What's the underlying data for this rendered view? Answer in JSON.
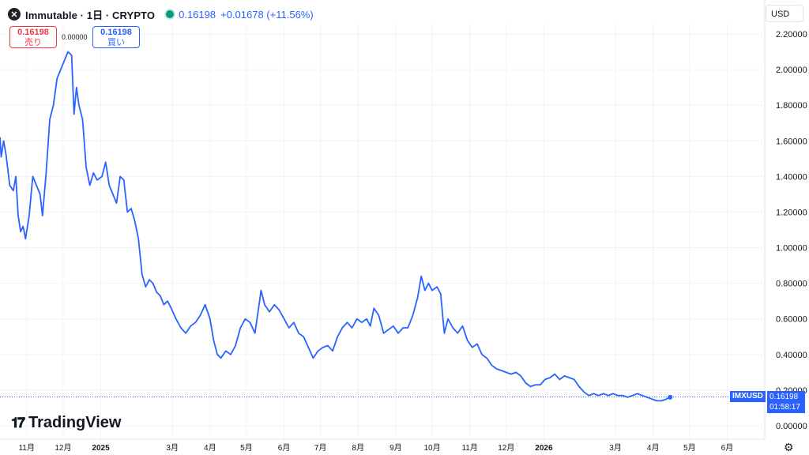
{
  "header": {
    "symbol_logo": "x-logo-icon",
    "title": "Immutable · 1日 · CRYPTO",
    "price": "0.16198",
    "change": "+0.01678 (+11.56%)"
  },
  "trade": {
    "sell_price": "0.16198",
    "sell_label": "売り",
    "spread": "0.00000",
    "buy_price": "0.16198",
    "buy_label": "買い"
  },
  "currency": "USD",
  "brand": "TradingView",
  "last": {
    "symbol": "IMXUSD",
    "price": "0.16198",
    "countdown": "01:58:17"
  },
  "colors": {
    "line": "#2962ff",
    "sell": "#f23645",
    "buy": "#2962ff"
  },
  "chart_data": {
    "type": "line",
    "title": "",
    "xlabel": "",
    "ylabel": "",
    "ylim": [
      0,
      2.25
    ],
    "xlim": [
      "2024-10-10",
      "2026-06-30"
    ],
    "grid": true,
    "y_ticks": [
      "2.20000",
      "2.00000",
      "1.80000",
      "1.60000",
      "1.40000",
      "1.20000",
      "1.00000",
      "0.80000",
      "0.60000",
      "0.40000",
      "0.20000",
      "0.00000"
    ],
    "x_ticks": [
      {
        "label": "11月",
        "date": "2024-11-01"
      },
      {
        "label": "12月",
        "date": "2024-12-01"
      },
      {
        "label": "2025",
        "date": "2025-01-01",
        "bold": true
      },
      {
        "label": "3月",
        "date": "2025-03-01"
      },
      {
        "label": "4月",
        "date": "2025-04-01"
      },
      {
        "label": "5月",
        "date": "2025-05-01"
      },
      {
        "label": "6月",
        "date": "2025-06-01"
      },
      {
        "label": "7月",
        "date": "2025-07-01"
      },
      {
        "label": "8月",
        "date": "2025-08-01"
      },
      {
        "label": "9月",
        "date": "2025-09-01"
      },
      {
        "label": "10月",
        "date": "2025-10-01"
      },
      {
        "label": "11月",
        "date": "2025-11-01"
      },
      {
        "label": "12月",
        "date": "2025-12-01"
      },
      {
        "label": "2026",
        "date": "2026-01-01",
        "bold": true
      },
      {
        "label": "3月",
        "date": "2026-03-01"
      },
      {
        "label": "4月",
        "date": "2026-04-01"
      },
      {
        "label": "5月",
        "date": "2026-05-01"
      },
      {
        "label": "6月",
        "date": "2026-06-01"
      }
    ],
    "series": [
      {
        "values": [
          [
            "2024-10-10",
            1.62
          ],
          [
            "2024-10-11",
            1.51
          ],
          [
            "2024-10-13",
            1.6
          ],
          [
            "2024-10-15",
            1.52
          ],
          [
            "2024-10-18",
            1.35
          ],
          [
            "2024-10-21",
            1.32
          ],
          [
            "2024-10-23",
            1.4
          ],
          [
            "2024-10-25",
            1.18
          ],
          [
            "2024-10-27",
            1.09
          ],
          [
            "2024-10-29",
            1.12
          ],
          [
            "2024-10-31",
            1.05
          ],
          [
            "2024-11-03",
            1.18
          ],
          [
            "2024-11-06",
            1.4
          ],
          [
            "2024-11-09",
            1.35
          ],
          [
            "2024-11-12",
            1.3
          ],
          [
            "2024-11-14",
            1.18
          ],
          [
            "2024-11-17",
            1.42
          ],
          [
            "2024-11-20",
            1.72
          ],
          [
            "2024-11-23",
            1.8
          ],
          [
            "2024-11-26",
            1.95
          ],
          [
            "2024-11-29",
            2.0
          ],
          [
            "2024-12-02",
            2.05
          ],
          [
            "2024-12-05",
            2.1
          ],
          [
            "2024-12-08",
            2.08
          ],
          [
            "2024-12-10",
            1.75
          ],
          [
            "2024-12-12",
            1.9
          ],
          [
            "2024-12-14",
            1.8
          ],
          [
            "2024-12-17",
            1.72
          ],
          [
            "2024-12-20",
            1.45
          ],
          [
            "2024-12-23",
            1.35
          ],
          [
            "2024-12-26",
            1.42
          ],
          [
            "2024-12-29",
            1.38
          ],
          [
            "2025-01-02",
            1.4
          ],
          [
            "2025-01-05",
            1.48
          ],
          [
            "2025-01-08",
            1.35
          ],
          [
            "2025-01-11",
            1.3
          ],
          [
            "2025-01-14",
            1.25
          ],
          [
            "2025-01-17",
            1.4
          ],
          [
            "2025-01-20",
            1.38
          ],
          [
            "2025-01-23",
            1.2
          ],
          [
            "2025-01-26",
            1.22
          ],
          [
            "2025-01-29",
            1.15
          ],
          [
            "2025-02-01",
            1.05
          ],
          [
            "2025-02-04",
            0.85
          ],
          [
            "2025-02-07",
            0.78
          ],
          [
            "2025-02-10",
            0.82
          ],
          [
            "2025-02-13",
            0.8
          ],
          [
            "2025-02-16",
            0.75
          ],
          [
            "2025-02-19",
            0.73
          ],
          [
            "2025-02-22",
            0.68
          ],
          [
            "2025-02-25",
            0.7
          ],
          [
            "2025-02-28",
            0.66
          ],
          [
            "2025-03-04",
            0.6
          ],
          [
            "2025-03-08",
            0.55
          ],
          [
            "2025-03-12",
            0.52
          ],
          [
            "2025-03-16",
            0.56
          ],
          [
            "2025-03-20",
            0.58
          ],
          [
            "2025-03-24",
            0.62
          ],
          [
            "2025-03-28",
            0.68
          ],
          [
            "2025-04-01",
            0.6
          ],
          [
            "2025-04-04",
            0.48
          ],
          [
            "2025-04-07",
            0.4
          ],
          [
            "2025-04-10",
            0.38
          ],
          [
            "2025-04-14",
            0.42
          ],
          [
            "2025-04-18",
            0.4
          ],
          [
            "2025-04-22",
            0.45
          ],
          [
            "2025-04-26",
            0.55
          ],
          [
            "2025-04-30",
            0.6
          ],
          [
            "2025-05-04",
            0.58
          ],
          [
            "2025-05-08",
            0.52
          ],
          [
            "2025-05-11",
            0.66
          ],
          [
            "2025-05-13",
            0.76
          ],
          [
            "2025-05-16",
            0.68
          ],
          [
            "2025-05-20",
            0.64
          ],
          [
            "2025-05-24",
            0.68
          ],
          [
            "2025-05-28",
            0.65
          ],
          [
            "2025-06-01",
            0.6
          ],
          [
            "2025-06-05",
            0.55
          ],
          [
            "2025-06-09",
            0.58
          ],
          [
            "2025-06-13",
            0.52
          ],
          [
            "2025-06-17",
            0.5
          ],
          [
            "2025-06-21",
            0.44
          ],
          [
            "2025-06-25",
            0.38
          ],
          [
            "2025-06-29",
            0.42
          ],
          [
            "2025-07-03",
            0.44
          ],
          [
            "2025-07-07",
            0.45
          ],
          [
            "2025-07-11",
            0.42
          ],
          [
            "2025-07-15",
            0.5
          ],
          [
            "2025-07-19",
            0.55
          ],
          [
            "2025-07-23",
            0.58
          ],
          [
            "2025-07-27",
            0.55
          ],
          [
            "2025-07-31",
            0.6
          ],
          [
            "2025-08-04",
            0.58
          ],
          [
            "2025-08-08",
            0.6
          ],
          [
            "2025-08-11",
            0.56
          ],
          [
            "2025-08-14",
            0.66
          ],
          [
            "2025-08-18",
            0.62
          ],
          [
            "2025-08-22",
            0.52
          ],
          [
            "2025-08-26",
            0.54
          ],
          [
            "2025-08-30",
            0.56
          ],
          [
            "2025-09-03",
            0.52
          ],
          [
            "2025-09-07",
            0.55
          ],
          [
            "2025-09-11",
            0.55
          ],
          [
            "2025-09-15",
            0.62
          ],
          [
            "2025-09-19",
            0.72
          ],
          [
            "2025-09-22",
            0.84
          ],
          [
            "2025-09-25",
            0.76
          ],
          [
            "2025-09-28",
            0.8
          ],
          [
            "2025-10-01",
            0.76
          ],
          [
            "2025-10-05",
            0.78
          ],
          [
            "2025-10-08",
            0.74
          ],
          [
            "2025-10-11",
            0.52
          ],
          [
            "2025-10-14",
            0.6
          ],
          [
            "2025-10-18",
            0.55
          ],
          [
            "2025-10-22",
            0.52
          ],
          [
            "2025-10-26",
            0.56
          ],
          [
            "2025-10-30",
            0.48
          ],
          [
            "2025-11-03",
            0.44
          ],
          [
            "2025-11-07",
            0.46
          ],
          [
            "2025-11-11",
            0.4
          ],
          [
            "2025-11-15",
            0.38
          ],
          [
            "2025-11-19",
            0.34
          ],
          [
            "2025-11-23",
            0.32
          ],
          [
            "2025-11-27",
            0.31
          ],
          [
            "2025-12-01",
            0.3
          ],
          [
            "2025-12-05",
            0.29
          ],
          [
            "2025-12-09",
            0.3
          ],
          [
            "2025-12-13",
            0.28
          ],
          [
            "2025-12-17",
            0.24
          ],
          [
            "2025-12-21",
            0.22
          ],
          [
            "2025-12-25",
            0.23
          ],
          [
            "2025-12-29",
            0.23
          ],
          [
            "2026-01-02",
            0.26
          ],
          [
            "2026-01-06",
            0.27
          ],
          [
            "2026-01-10",
            0.29
          ],
          [
            "2026-01-14",
            0.26
          ],
          [
            "2026-01-18",
            0.28
          ],
          [
            "2026-01-22",
            0.27
          ],
          [
            "2026-01-26",
            0.26
          ],
          [
            "2026-01-30",
            0.22
          ],
          [
            "2026-02-03",
            0.19
          ],
          [
            "2026-02-07",
            0.17
          ],
          [
            "2026-02-11",
            0.18
          ],
          [
            "2026-02-15",
            0.17
          ],
          [
            "2026-02-19",
            0.18
          ],
          [
            "2026-02-23",
            0.17
          ],
          [
            "2026-02-27",
            0.18
          ],
          [
            "2026-03-03",
            0.17
          ],
          [
            "2026-03-07",
            0.17
          ],
          [
            "2026-03-11",
            0.16
          ],
          [
            "2026-03-15",
            0.17
          ],
          [
            "2026-03-19",
            0.18
          ],
          [
            "2026-03-23",
            0.17
          ],
          [
            "2026-03-27",
            0.16
          ],
          [
            "2026-03-31",
            0.15
          ],
          [
            "2026-04-04",
            0.14
          ],
          [
            "2026-04-08",
            0.14
          ],
          [
            "2026-04-12",
            0.15
          ],
          [
            "2026-04-15",
            0.16
          ]
        ]
      }
    ]
  }
}
